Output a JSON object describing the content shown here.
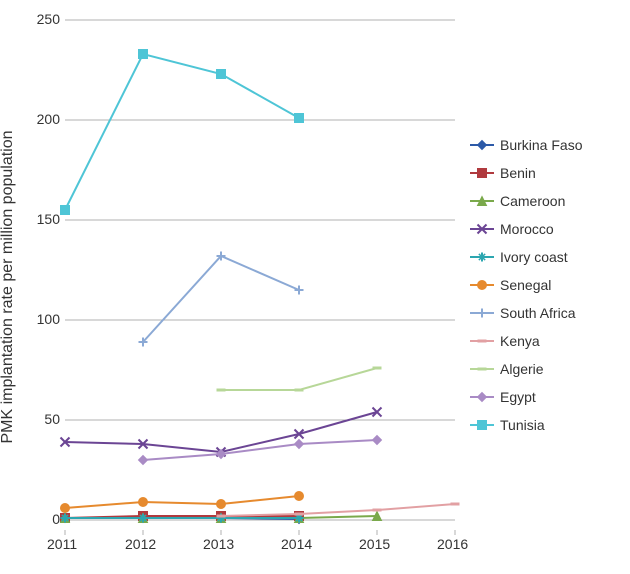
{
  "chart": {
    "type": "line",
    "y_axis_label": "PMK implantation rate per million population",
    "x_categories": [
      "2011",
      "2012",
      "2013",
      "2014",
      "2015",
      "2016"
    ],
    "y_ticks": [
      0,
      50,
      100,
      150,
      200,
      250
    ],
    "xlim": [
      2011,
      2016
    ],
    "ylim": [
      -5,
      250
    ],
    "background_color": "#ffffff",
    "grid_color": "#b0b0b0",
    "axis_color": "#888888",
    "tick_font_size": 14,
    "label_font_size": 16,
    "series": [
      {
        "name": "Burkina Faso",
        "color": "#2d5aa8",
        "marker": "diamond",
        "data": [
          [
            2011,
            1
          ],
          [
            2012,
            1
          ],
          [
            2013,
            1
          ],
          [
            2014,
            0.5
          ]
        ]
      },
      {
        "name": "Benin",
        "color": "#b03a3e",
        "marker": "square",
        "data": [
          [
            2011,
            1
          ],
          [
            2012,
            2
          ],
          [
            2013,
            2
          ],
          [
            2014,
            2
          ]
        ]
      },
      {
        "name": "Cameroon",
        "color": "#7aa94b",
        "marker": "triangle",
        "data": [
          [
            2011,
            1
          ],
          [
            2012,
            1
          ],
          [
            2013,
            1
          ],
          [
            2014,
            1
          ],
          [
            2015,
            2
          ]
        ]
      },
      {
        "name": "Morocco",
        "color": "#6b4594",
        "marker": "x",
        "data": [
          [
            2011,
            39
          ],
          [
            2012,
            38
          ],
          [
            2013,
            34
          ],
          [
            2014,
            43
          ],
          [
            2015,
            54
          ]
        ]
      },
      {
        "name": "Ivory coast",
        "color": "#2ca6b0",
        "marker": "star",
        "data": [
          [
            2011,
            1
          ],
          [
            2012,
            1
          ],
          [
            2013,
            1
          ],
          [
            2014,
            1
          ]
        ]
      },
      {
        "name": "Senegal",
        "color": "#e68a2e",
        "marker": "circle",
        "data": [
          [
            2011,
            6
          ],
          [
            2012,
            9
          ],
          [
            2013,
            8
          ],
          [
            2014,
            12
          ]
        ]
      },
      {
        "name": "South Africa",
        "color": "#8ba9d5",
        "marker": "plus",
        "data": [
          [
            2012,
            89
          ],
          [
            2013,
            132
          ],
          [
            2014,
            115
          ]
        ]
      },
      {
        "name": "Kenya",
        "color": "#e2a0a3",
        "marker": "dash",
        "data": [
          [
            2013,
            2
          ],
          [
            2014,
            3
          ],
          [
            2015,
            5
          ],
          [
            2016,
            8
          ]
        ]
      },
      {
        "name": "Algerie",
        "color": "#b7d798",
        "marker": "dash",
        "data": [
          [
            2013,
            65
          ],
          [
            2014,
            65
          ],
          [
            2015,
            76
          ]
        ]
      },
      {
        "name": "Egypt",
        "color": "#a98bc5",
        "marker": "diamond",
        "data": [
          [
            2012,
            30
          ],
          [
            2013,
            33
          ],
          [
            2014,
            38
          ],
          [
            2015,
            40
          ]
        ]
      },
      {
        "name": "Tunisia",
        "color": "#4ec5d6",
        "marker": "square",
        "data": [
          [
            2011,
            155
          ],
          [
            2012,
            233
          ],
          [
            2013,
            223
          ],
          [
            2014,
            201
          ]
        ]
      }
    ]
  }
}
